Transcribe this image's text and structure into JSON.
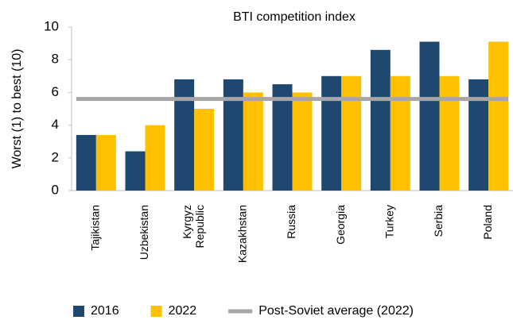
{
  "chart_data": {
    "type": "bar",
    "title": "BTI competition index",
    "y_label": "Worst (1) to best (10)",
    "categories": [
      "Tajikistan",
      "Uzbekistan",
      "Kyrgyz Republic",
      "Kazakhstan",
      "Russia",
      "Georgia",
      "Turkey",
      "Serbia",
      "Poland"
    ],
    "series": [
      {
        "name": "2016",
        "color": "#1f4870",
        "type": "bar",
        "values": [
          3.4,
          2.4,
          6.8,
          6.8,
          6.5,
          7.0,
          8.6,
          9.1,
          6.8
        ]
      },
      {
        "name": "2022",
        "color": "#ffc000",
        "type": "bar",
        "values": [
          3.4,
          4.0,
          5.0,
          6.0,
          6.0,
          7.0,
          7.0,
          7.0,
          9.1
        ]
      },
      {
        "name": "Post-Soviet average (2022)",
        "color": "#a6a6a6",
        "type": "line",
        "values": [
          5.6,
          5.6,
          5.6,
          5.6,
          5.6,
          5.6,
          5.6,
          5.6,
          5.6
        ]
      }
    ],
    "ylim": [
      0,
      10
    ],
    "yticks": [
      0,
      2,
      4,
      6,
      8,
      10
    ],
    "grid": false,
    "legend": "bottom"
  }
}
